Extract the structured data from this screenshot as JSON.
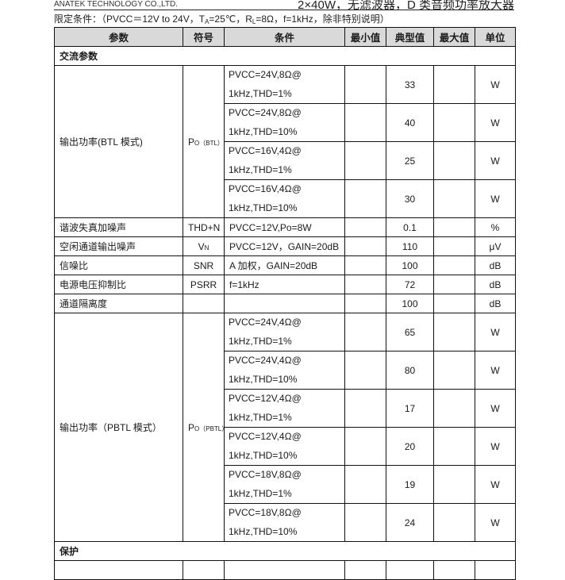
{
  "header": {
    "company": "ANATEK TECHNOLOGY CO.,LTD.",
    "title": "2×40W，无滤波器，D 类音频功率放大器"
  },
  "conditions": {
    "prefix": "限定条件：（PVCC＝12V to 24V，T",
    "ta_sub": "A",
    "mid1": "=25℃，R",
    "rl_sub": "L",
    "suffix": "=8Ω，f=1kHz，除非特别说明）"
  },
  "table": {
    "columns": [
      "参数",
      "符号",
      "条件",
      "最小值",
      "典型值",
      "最大值",
      "单位"
    ],
    "sections": [
      {
        "title": "交流参数",
        "groups": [
          {
            "param": "输出功率(BTL 模式)",
            "symbol": "P",
            "symbol_sub": "O（BTL）",
            "rows": [
              {
                "cond1": "PVCC=24V,8Ω@",
                "cond2": "1kHz,THD=1%",
                "min": "",
                "typ": "33",
                "max": "",
                "unit": "W"
              },
              {
                "cond1": "PVCC=24V,8Ω@",
                "cond2": "1kHz,THD=10%",
                "min": "",
                "typ": "40",
                "max": "",
                "unit": "W"
              },
              {
                "cond1": "PVCC=16V,4Ω@",
                "cond2": "1kHz,THD=1%",
                "min": "",
                "typ": "25",
                "max": "",
                "unit": "W"
              },
              {
                "cond1": "PVCC=16V,4Ω@",
                "cond2": "1kHz,THD=10%",
                "min": "",
                "typ": "30",
                "max": "",
                "unit": "W"
              }
            ]
          },
          {
            "param": "谐波失真加噪声",
            "symbol": "THD+N",
            "symbol_sub": "",
            "single": {
              "cond": "PVCC=12V,Po=8W",
              "min": "",
              "typ": "0.1",
              "max": "",
              "unit": "%"
            }
          },
          {
            "param": "空闲通道输出噪声",
            "symbol": "V",
            "symbol_sub": "N",
            "single": {
              "cond": "PVCC=12V，GAIN=20dB",
              "min": "",
              "typ": "110",
              "max": "",
              "unit": "μV"
            }
          },
          {
            "param": "信噪比",
            "symbol": "SNR",
            "symbol_sub": "",
            "single": {
              "cond": "A 加权，GAIN=20dB",
              "min": "",
              "typ": "100",
              "max": "",
              "unit": "dB"
            }
          },
          {
            "param": "电源电压抑制比",
            "symbol": "PSRR",
            "symbol_sub": "",
            "single": {
              "cond": "f=1kHz",
              "min": "",
              "typ": "72",
              "max": "",
              "unit": "dB"
            }
          },
          {
            "param": "通道隔离度",
            "symbol": "",
            "symbol_sub": "",
            "single": {
              "cond": "",
              "min": "",
              "typ": "100",
              "max": "",
              "unit": "dB"
            }
          },
          {
            "param": "输出功率（PBTL 模式）",
            "symbol": "P",
            "symbol_sub": "O（PBTL）",
            "rows": [
              {
                "cond1": "PVCC=24V,4Ω@",
                "cond2": "1kHz,THD=1%",
                "min": "",
                "typ": "65",
                "max": "",
                "unit": "W"
              },
              {
                "cond1": "PVCC=24V,4Ω@",
                "cond2": "1kHz,THD=10%",
                "min": "",
                "typ": "80",
                "max": "",
                "unit": "W"
              },
              {
                "cond1": "PVCC=12V,4Ω@",
                "cond2": "1kHz,THD=1%",
                "min": "",
                "typ": "17",
                "max": "",
                "unit": "W"
              },
              {
                "cond1": "PVCC=12V,4Ω@",
                "cond2": "1kHz,THD=10%",
                "min": "",
                "typ": "20",
                "max": "",
                "unit": "W"
              },
              {
                "cond1": "PVCC=18V,8Ω@",
                "cond2": "1kHz,THD=1%",
                "min": "",
                "typ": "19",
                "max": "",
                "unit": "W"
              },
              {
                "cond1": "PVCC=18V,8Ω@",
                "cond2": "1kHz,THD=10%",
                "min": "",
                "typ": "24",
                "max": "",
                "unit": "W"
              }
            ]
          }
        ]
      },
      {
        "title": "保护",
        "groups": [
          {
            "param": "",
            "symbol": "",
            "symbol_sub": "",
            "single": {
              "cond": "",
              "min": "",
              "typ": "",
              "max": "",
              "unit": ""
            }
          }
        ]
      }
    ]
  }
}
